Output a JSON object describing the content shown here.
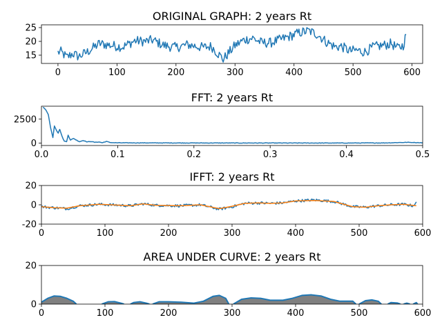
{
  "chart_data": [
    {
      "type": "line",
      "title": "ORIGINAL GRAPH: 2 years Rt",
      "xlim": [
        -28,
        618
      ],
      "ylim": [
        12,
        26
      ],
      "xticks": [
        0,
        100,
        200,
        300,
        400,
        500,
        600
      ],
      "yticks": [
        15,
        20,
        25
      ],
      "series": [
        {
          "color": "#1f77b4",
          "segments": [
            [
              [
                0,
                16
              ],
              [
                5,
                16.2
              ],
              [
                15,
                14.2
              ],
              [
                25,
                15.6
              ],
              [
                35,
                14.5
              ],
              [
                50,
                16.2
              ],
              [
                70,
                19.2
              ],
              [
                95,
                18.4
              ],
              [
                110,
                18
              ],
              [
                130,
                20.2
              ],
              [
                150,
                20
              ],
              [
                160,
                20.5
              ],
              [
                180,
                18.5
              ],
              [
                200,
                17.8
              ],
              [
                220,
                18.8
              ],
              [
                245,
                17.8
              ],
              [
                260,
                18.2
              ],
              [
                280,
                13.5
              ],
              [
                290,
                16
              ],
              [
                300,
                18.5
              ],
              [
                315,
                20.5
              ],
              [
                330,
                21.2
              ],
              [
                345,
                19.5
              ],
              [
                360,
                19.5
              ],
              [
                375,
                20.5
              ],
              [
                395,
                22
              ],
              [
                410,
                23.2
              ],
              [
                425,
                23.8
              ],
              [
                440,
                22.5
              ],
              [
                455,
                19.8
              ],
              [
                470,
                18
              ],
              [
                480,
                18.2
              ],
              [
                495,
                16.5
              ],
              [
                505,
                16.8
              ],
              [
                520,
                16.2
              ],
              [
                535,
                18
              ],
              [
                550,
                18.5
              ],
              [
                565,
                19.2
              ],
              [
                575,
                17.5
              ],
              [
                585,
                18.5
              ],
              [
                590,
                22.5
              ]
            ]
          ],
          "noise": 1.8
        }
      ]
    },
    {
      "type": "line",
      "title": "FFT: 2 years Rt",
      "xlim": [
        0,
        0.5
      ],
      "ylim": [
        -250,
        3850
      ],
      "xticks": [
        0.0,
        0.1,
        0.2,
        0.3,
        0.4,
        0.5
      ],
      "yticks": [
        0,
        2500
      ],
      "series": [
        {
          "color": "#1f77b4",
          "segments": [
            [
              [
                0.002,
                3750
              ],
              [
                0.006,
                3450
              ],
              [
                0.009,
                3000
              ],
              [
                0.012,
                1600
              ],
              [
                0.015,
                600
              ],
              [
                0.017,
                1800
              ],
              [
                0.02,
                1300
              ],
              [
                0.022,
                1050
              ],
              [
                0.024,
                1450
              ],
              [
                0.027,
                700
              ],
              [
                0.03,
                200
              ],
              [
                0.033,
                150
              ],
              [
                0.035,
                850
              ],
              [
                0.038,
                300
              ],
              [
                0.042,
                500
              ],
              [
                0.045,
                350
              ],
              [
                0.05,
                150
              ],
              [
                0.055,
                280
              ],
              [
                0.06,
                120
              ],
              [
                0.065,
                180
              ],
              [
                0.07,
                80
              ],
              [
                0.075,
                120
              ],
              [
                0.08,
                40
              ],
              [
                0.085,
                180
              ],
              [
                0.09,
                60
              ],
              [
                0.1,
                30
              ],
              [
                0.15,
                20
              ],
              [
                0.2,
                15
              ],
              [
                0.3,
                10
              ],
              [
                0.4,
                10
              ],
              [
                0.45,
                20
              ],
              [
                0.48,
                80
              ],
              [
                0.5,
                40
              ]
            ]
          ],
          "noise": 25
        }
      ]
    },
    {
      "type": "line",
      "title": "IFFT: 2 years Rt",
      "xlim": [
        0,
        600
      ],
      "ylim": [
        -20,
        20
      ],
      "xticks": [
        0,
        100,
        200,
        300,
        400,
        500,
        600
      ],
      "yticks": [
        -20,
        0,
        20
      ],
      "series": [
        {
          "color": "#1f77b4",
          "segments": [
            [
              [
                0,
                -2
              ],
              [
                20,
                -3
              ],
              [
                40,
                -4
              ],
              [
                60,
                -1
              ],
              [
                90,
                0.5
              ],
              [
                110,
                0
              ],
              [
                140,
                -1
              ],
              [
                160,
                1
              ],
              [
                180,
                -0.5
              ],
              [
                220,
                -1
              ],
              [
                250,
                0
              ],
              [
                280,
                -4.5
              ],
              [
                300,
                -2
              ],
              [
                320,
                1.5
              ],
              [
                340,
                2
              ],
              [
                360,
                1.5
              ],
              [
                380,
                2
              ],
              [
                400,
                4
              ],
              [
                430,
                5
              ],
              [
                460,
                3.5
              ],
              [
                490,
                -2
              ],
              [
                510,
                -2.5
              ],
              [
                530,
                -1
              ],
              [
                550,
                0
              ],
              [
                570,
                0.5
              ],
              [
                585,
                -1
              ],
              [
                590,
                3
              ]
            ]
          ],
          "noise": 1.4
        },
        {
          "color": "#ff7f0e",
          "segments": [
            [
              [
                0,
                -2
              ],
              [
                20,
                -3
              ],
              [
                40,
                -3.5
              ],
              [
                60,
                -1
              ],
              [
                90,
                0.5
              ],
              [
                110,
                0
              ],
              [
                140,
                -1
              ],
              [
                160,
                1
              ],
              [
                180,
                -0.5
              ],
              [
                220,
                -1
              ],
              [
                250,
                0
              ],
              [
                280,
                -4
              ],
              [
                300,
                -1.5
              ],
              [
                320,
                1.5
              ],
              [
                340,
                2
              ],
              [
                360,
                1.5
              ],
              [
                380,
                2
              ],
              [
                400,
                4
              ],
              [
                430,
                4.5
              ],
              [
                460,
                3.5
              ],
              [
                490,
                -2
              ],
              [
                510,
                -2.5
              ],
              [
                530,
                -1
              ],
              [
                550,
                0
              ],
              [
                570,
                0.5
              ],
              [
                590,
                -1
              ]
            ]
          ],
          "noise": 0
        }
      ]
    },
    {
      "type": "area",
      "title": "AREA UNDER CURVE: 2 years Rt",
      "xlim": [
        0,
        600
      ],
      "ylim": [
        0,
        20
      ],
      "xticks": [
        0,
        100,
        200,
        300,
        400,
        500,
        600
      ],
      "yticks": [
        0,
        20
      ],
      "fill": "#808080",
      "series": [
        {
          "color": "#1f77b4",
          "segments": [
            [
              [
                0,
                1
              ],
              [
                10,
                3
              ],
              [
                20,
                4.2
              ],
              [
                30,
                4
              ],
              [
                40,
                3
              ],
              [
                50,
                1.5
              ],
              [
                55,
                0
              ]
            ],
            [
              [
                95,
                0
              ],
              [
                105,
                1.2
              ],
              [
                115,
                1.3
              ],
              [
                125,
                0.5
              ],
              [
                130,
                0
              ]
            ],
            [
              [
                140,
                0
              ],
              [
                145,
                0.8
              ],
              [
                155,
                1.2
              ],
              [
                165,
                0.5
              ],
              [
                170,
                0
              ]
            ],
            [
              [
                175,
                0
              ],
              [
                185,
                1.2
              ],
              [
                200,
                1.2
              ],
              [
                220,
                1
              ],
              [
                240,
                0.5
              ],
              [
                255,
                1.5
              ],
              [
                270,
                4
              ],
              [
                280,
                4.5
              ],
              [
                290,
                3
              ],
              [
                295,
                0
              ]
            ],
            [
              [
                302,
                0
              ],
              [
                315,
                2.5
              ],
              [
                330,
                3.2
              ],
              [
                345,
                3
              ],
              [
                360,
                2
              ],
              [
                380,
                2
              ],
              [
                395,
                3
              ],
              [
                410,
                4.5
              ],
              [
                425,
                4.8
              ],
              [
                440,
                4.2
              ],
              [
                455,
                2.5
              ],
              [
                470,
                1.5
              ],
              [
                490,
                1.5
              ],
              [
                495,
                0
              ]
            ],
            [
              [
                500,
                0
              ],
              [
                510,
                1.8
              ],
              [
                520,
                2.2
              ],
              [
                530,
                1.5
              ],
              [
                535,
                0
              ]
            ],
            [
              [
                545,
                0
              ],
              [
                550,
                0.8
              ],
              [
                560,
                0.6
              ],
              [
                565,
                0
              ]
            ],
            [
              [
                570,
                0
              ],
              [
                575,
                0.5
              ],
              [
                580,
                0
              ]
            ],
            [
              [
                585,
                0
              ],
              [
                590,
                0.8
              ],
              [
                592,
                0
              ]
            ]
          ],
          "noise": 0
        }
      ]
    }
  ]
}
